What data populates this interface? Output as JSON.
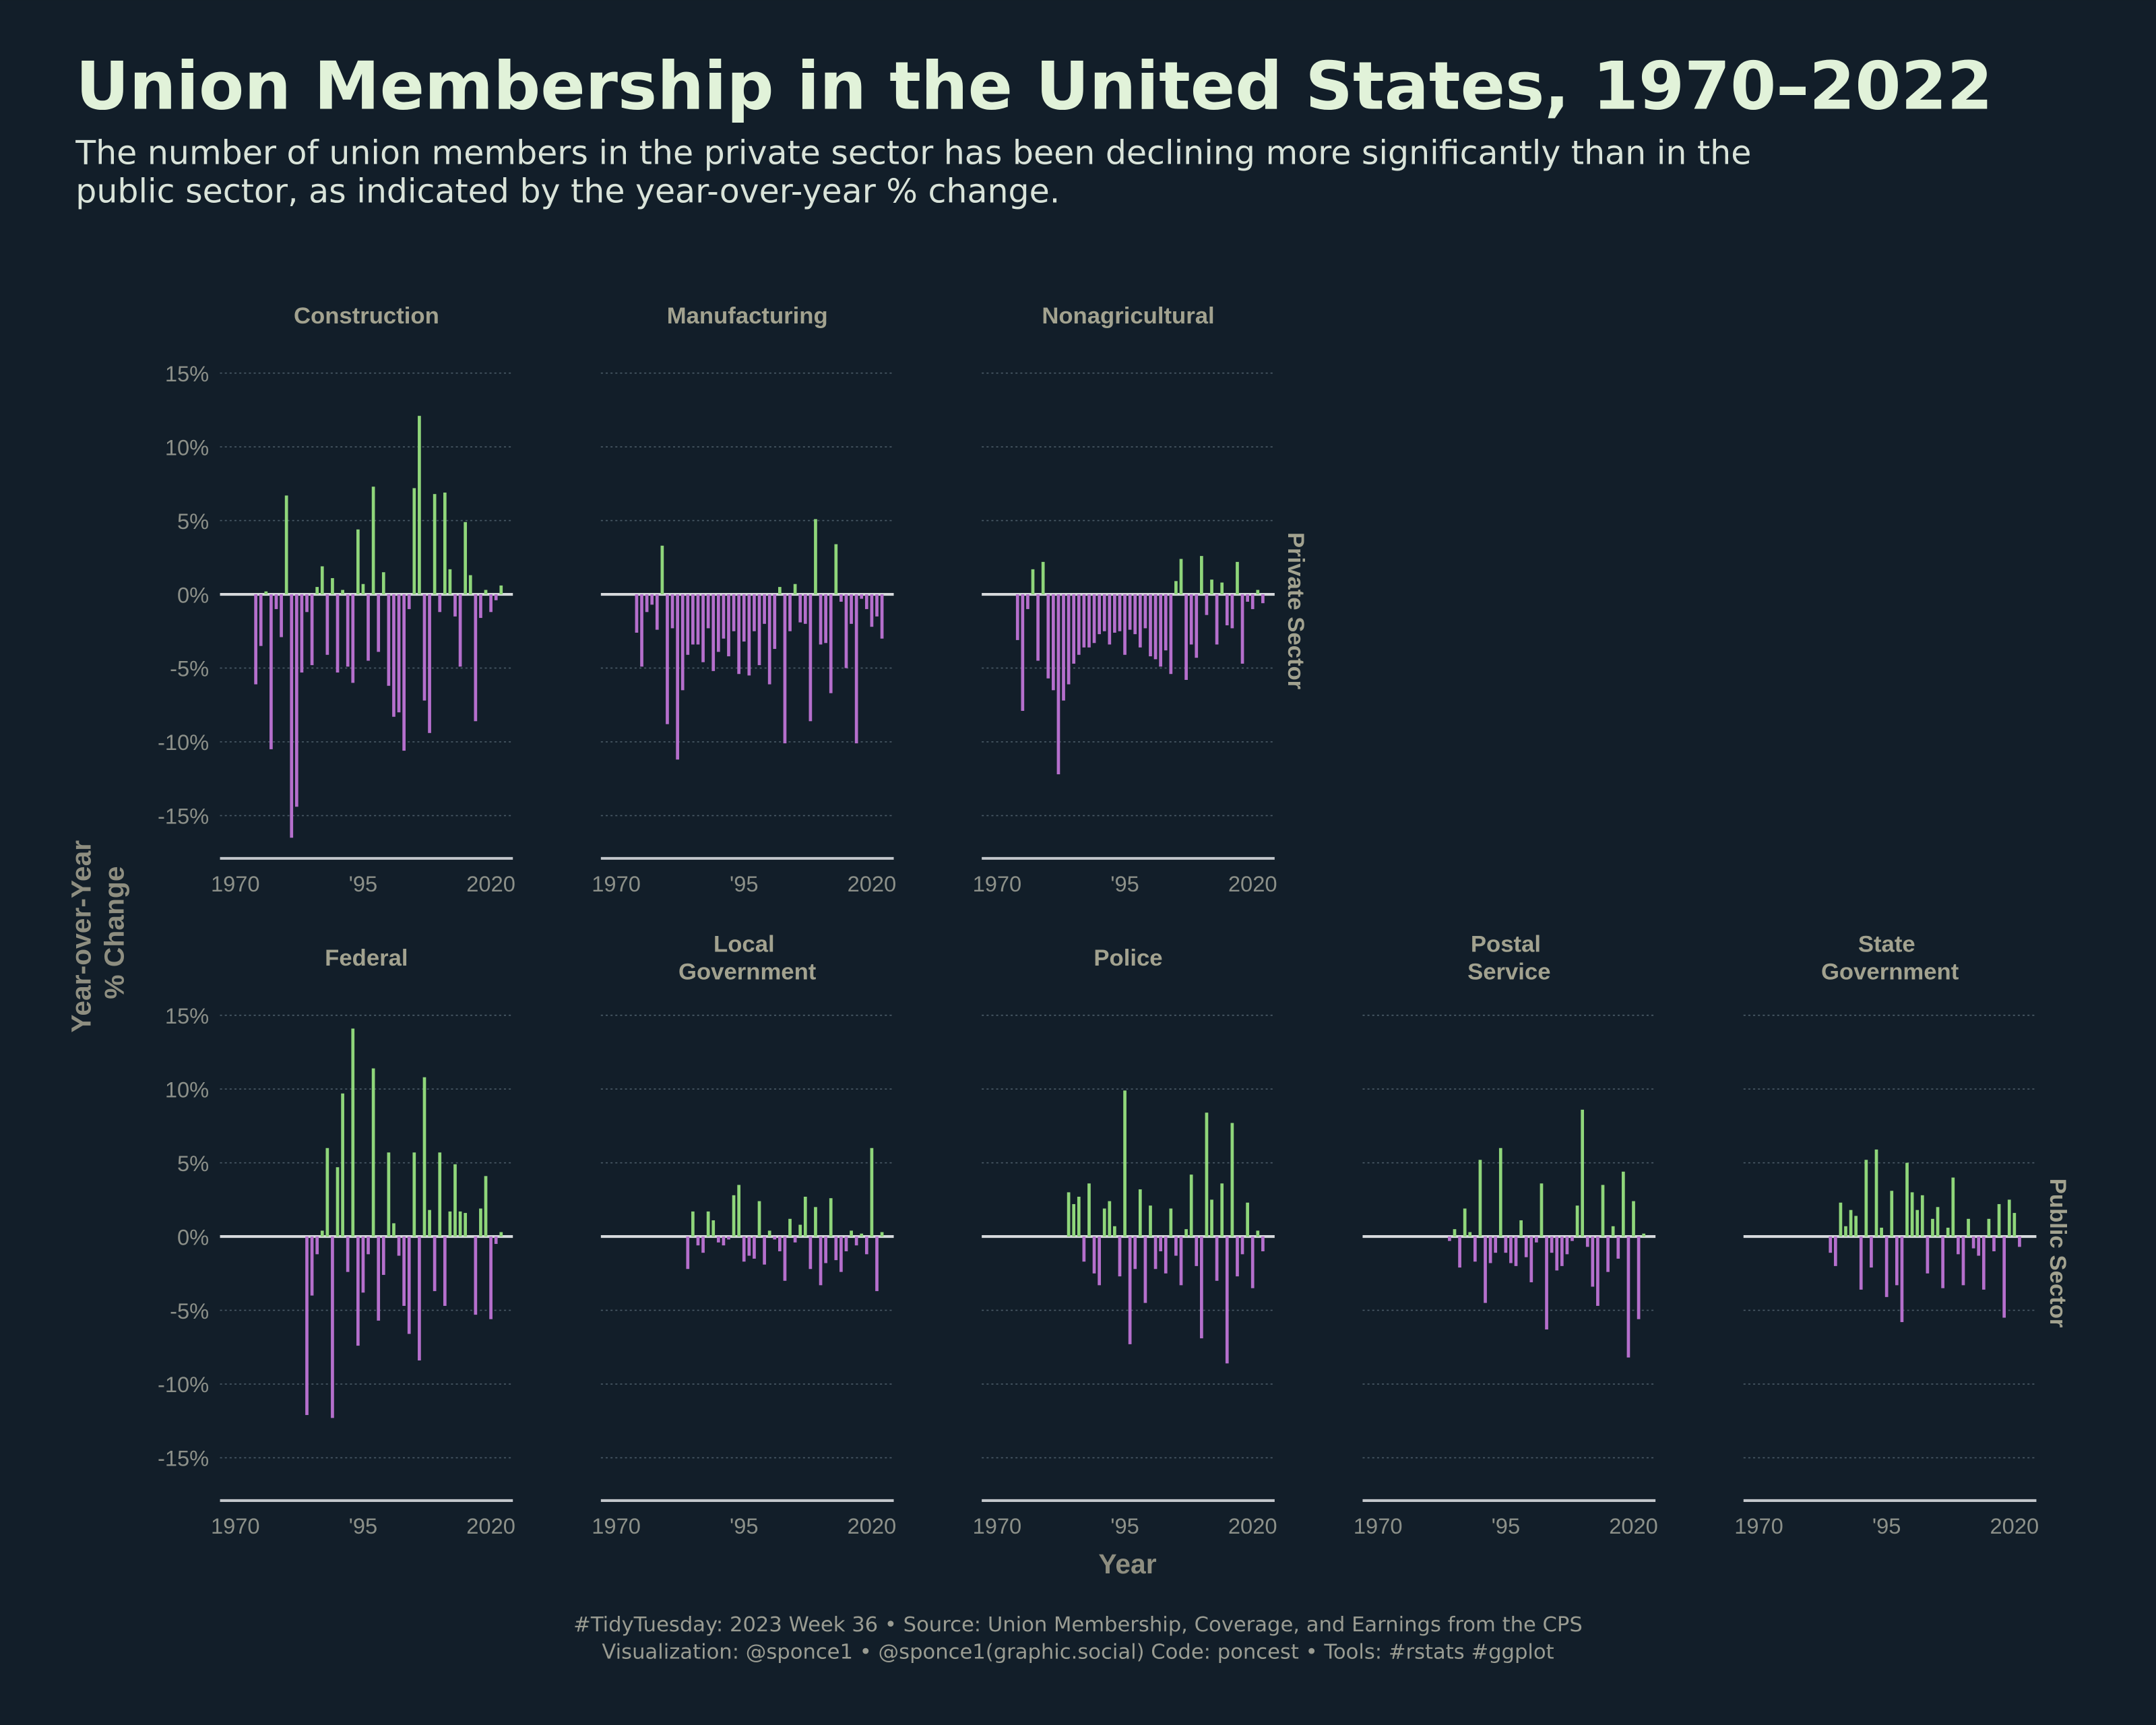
{
  "title": "Union Membership in the United States, 1970–2022",
  "subtitle": [
    "The number of union members in the private sector has been declining more significantly than in the",
    "public sector, as indicated by the year-over-year % change."
  ],
  "x_label": "Year",
  "y_label": "Year-over-Year % Change",
  "facet_rows": [
    "Private Sector",
    "Public Sector"
  ],
  "caption": [
    "#TidyTuesday: 2023 Week 36 • Source: Union Membership, Coverage, and Earnings from the CPS",
    "Visualization: @sponce1 • @sponce1(graphic.social) Code: poncest • Tools: #rstats #ggplot"
  ],
  "chart_data": [
    {
      "type": "bar",
      "title": "Construction",
      "x": [
        1974,
        1975,
        1976,
        1977,
        1978,
        1979,
        1980,
        1981,
        1982,
        1983,
        1984,
        1985,
        1986,
        1987,
        1988,
        1989,
        1990,
        1991,
        1992,
        1993,
        1994,
        1995,
        1996,
        1997,
        1998,
        1999,
        2000,
        2001,
        2002,
        2003,
        2004,
        2005,
        2006,
        2007,
        2008,
        2009,
        2010,
        2011,
        2012,
        2013,
        2014,
        2015,
        2016,
        2017,
        2018,
        2019,
        2020,
        2021,
        2022
      ],
      "values": [
        -6.1,
        -3.5,
        0.2,
        -10.5,
        -1.0,
        -2.9,
        6.7,
        -16.5,
        -14.4,
        -5.3,
        -1.2,
        -4.8,
        0.5,
        1.9,
        -4.1,
        1.1,
        -5.3,
        0.3,
        -4.9,
        -6.0,
        4.4,
        0.7,
        -4.5,
        7.3,
        -3.9,
        1.5,
        -6.2,
        -8.3,
        -8.0,
        -10.6,
        -1.0,
        7.2,
        12.1,
        -7.2,
        -9.4,
        6.8,
        -1.2,
        6.9,
        1.7,
        -1.5,
        -4.9,
        4.9,
        1.3,
        -8.6,
        -1.6,
        0.3,
        -1.2,
        -0.4,
        0.6
      ],
      "colors": {
        "positive": "#8fd67a",
        "negative": "#b56fcc"
      },
      "xlim": [
        1967,
        2024.3
      ],
      "xticks": [
        1970,
        {
          "value": 1995,
          "label": "'95"
        },
        2020
      ],
      "ylim": [
        -17.9,
        17.9
      ],
      "yticks": [
        {
          "value": -15,
          "label": "-15%"
        },
        {
          "value": -10,
          "label": "-10%"
        },
        {
          "value": -5,
          "label": "-5%"
        },
        {
          "value": 0,
          "label": "0%"
        },
        {
          "value": 5,
          "label": "5%"
        },
        {
          "value": 10,
          "label": "10%"
        },
        {
          "value": 15,
          "label": "15%"
        }
      ],
      "grid": true
    },
    {
      "type": "bar",
      "title": "Manufacturing",
      "x": [
        1974,
        1975,
        1976,
        1977,
        1978,
        1979,
        1980,
        1981,
        1982,
        1983,
        1984,
        1985,
        1986,
        1987,
        1988,
        1989,
        1990,
        1991,
        1992,
        1993,
        1994,
        1995,
        1996,
        1997,
        1998,
        1999,
        2000,
        2001,
        2002,
        2003,
        2004,
        2005,
        2006,
        2007,
        2008,
        2009,
        2010,
        2011,
        2012,
        2013,
        2014,
        2015,
        2016,
        2017,
        2018,
        2019,
        2020,
        2021,
        2022
      ],
      "values": [
        -2.6,
        -4.9,
        -1.2,
        -0.7,
        -2.4,
        3.3,
        -8.8,
        -2.3,
        -11.2,
        -6.5,
        -4.1,
        -3.4,
        -3.4,
        -4.6,
        -2.3,
        -5.2,
        -3.9,
        -3.0,
        -4.2,
        -2.5,
        -5.4,
        -3.2,
        -5.5,
        -2.5,
        -4.8,
        -2.0,
        -6.1,
        -3.7,
        0.5,
        -10.1,
        -2.5,
        0.7,
        -1.9,
        -2.0,
        -8.6,
        5.1,
        -3.4,
        -3.3,
        -6.7,
        3.4,
        -0.5,
        -5.0,
        -2.0,
        -10.1,
        -0.3,
        -1.0,
        -2.2,
        -1.5,
        -3.0
      ],
      "colors": {
        "positive": "#8fd67a",
        "negative": "#b56fcc"
      },
      "xlim": [
        1967,
        2024.3
      ],
      "xticks": [
        1970,
        {
          "value": 1995,
          "label": "'95"
        },
        2020
      ],
      "ylim": [
        -17.9,
        17.9
      ],
      "yticks": [
        {
          "value": -15,
          "label": "-15%"
        },
        {
          "value": -10,
          "label": "-10%"
        },
        {
          "value": -5,
          "label": "-5%"
        },
        {
          "value": 0,
          "label": "0%"
        },
        {
          "value": 5,
          "label": "5%"
        },
        {
          "value": 10,
          "label": "10%"
        },
        {
          "value": 15,
          "label": "15%"
        }
      ],
      "grid": true
    },
    {
      "type": "bar",
      "title": "Nonagricultural",
      "x": [
        1974,
        1975,
        1976,
        1977,
        1978,
        1979,
        1980,
        1981,
        1982,
        1983,
        1984,
        1985,
        1986,
        1987,
        1988,
        1989,
        1990,
        1991,
        1992,
        1993,
        1994,
        1995,
        1996,
        1997,
        1998,
        1999,
        2000,
        2001,
        2002,
        2003,
        2004,
        2005,
        2006,
        2007,
        2008,
        2009,
        2010,
        2011,
        2012,
        2013,
        2014,
        2015,
        2016,
        2017,
        2018,
        2019,
        2020,
        2021,
        2022
      ],
      "values": [
        -3.1,
        -7.9,
        -1.0,
        1.7,
        -4.5,
        2.2,
        -5.7,
        -6.5,
        -12.2,
        -7.2,
        -6.1,
        -4.7,
        -4.1,
        -3.6,
        -3.6,
        -3.3,
        -2.7,
        -2.5,
        -3.4,
        -2.6,
        -2.5,
        -4.1,
        -2.4,
        -2.7,
        -3.6,
        -2.3,
        -4.2,
        -4.4,
        -4.9,
        -3.8,
        -5.4,
        0.9,
        2.4,
        -5.8,
        -3.4,
        -4.3,
        2.6,
        -1.4,
        1.0,
        -3.4,
        0.8,
        -2.1,
        -2.3,
        2.2,
        -4.7,
        -0.5,
        -1.0,
        0.3,
        -0.6
      ],
      "colors": {
        "positive": "#8fd67a",
        "negative": "#b56fcc"
      },
      "xlim": [
        1967,
        2024.3
      ],
      "xticks": [
        1970,
        {
          "value": 1995,
          "label": "'95"
        },
        2020
      ],
      "ylim": [
        -17.9,
        17.9
      ],
      "yticks": [
        {
          "value": -15,
          "label": "-15%"
        },
        {
          "value": -10,
          "label": "-10%"
        },
        {
          "value": -5,
          "label": "-5%"
        },
        {
          "value": 0,
          "label": "0%"
        },
        {
          "value": 5,
          "label": "5%"
        },
        {
          "value": 10,
          "label": "10%"
        },
        {
          "value": 15,
          "label": "15%"
        }
      ],
      "grid": true
    },
    {
      "type": "bar",
      "title": "Federal",
      "x": [
        1984,
        1985,
        1986,
        1987,
        1988,
        1989,
        1990,
        1991,
        1992,
        1993,
        1994,
        1995,
        1996,
        1997,
        1998,
        1999,
        2000,
        2001,
        2002,
        2003,
        2004,
        2005,
        2006,
        2007,
        2008,
        2009,
        2010,
        2011,
        2012,
        2013,
        2014,
        2015,
        2016,
        2017,
        2018,
        2019,
        2020,
        2021,
        2022
      ],
      "values": [
        -12.1,
        -4.0,
        -1.2,
        0.4,
        6.0,
        -12.3,
        4.7,
        9.7,
        -2.4,
        14.1,
        -7.4,
        -3.8,
        -1.2,
        11.4,
        -5.7,
        -2.6,
        5.7,
        0.9,
        -1.3,
        -4.7,
        -6.6,
        5.7,
        -8.4,
        10.8,
        1.8,
        -3.7,
        5.7,
        -4.7,
        1.7,
        4.9,
        1.7,
        1.6,
        0.0,
        -5.3,
        1.9,
        4.1,
        -5.6,
        -0.5,
        0.3
      ],
      "colors": {
        "positive": "#8fd67a",
        "negative": "#b56fcc"
      },
      "xlim": [
        1967,
        2024.3
      ],
      "xticks": [
        1970,
        {
          "value": 1995,
          "label": "'95"
        },
        2020
      ],
      "ylim": [
        -17.9,
        17.9
      ],
      "yticks": [
        {
          "value": -15,
          "label": "-15%"
        },
        {
          "value": -10,
          "label": "-10%"
        },
        {
          "value": -5,
          "label": "-5%"
        },
        {
          "value": 0,
          "label": "0%"
        },
        {
          "value": 5,
          "label": "5%"
        },
        {
          "value": 10,
          "label": "10%"
        },
        {
          "value": 15,
          "label": "15%"
        }
      ],
      "grid": true
    },
    {
      "type": "bar",
      "title": "Local Government",
      "x": [
        1984,
        1985,
        1986,
        1987,
        1988,
        1989,
        1990,
        1991,
        1992,
        1993,
        1994,
        1995,
        1996,
        1997,
        1998,
        1999,
        2000,
        2001,
        2002,
        2003,
        2004,
        2005,
        2006,
        2007,
        2008,
        2009,
        2010,
        2011,
        2012,
        2013,
        2014,
        2015,
        2016,
        2017,
        2018,
        2019,
        2020,
        2021,
        2022
      ],
      "values": [
        -2.2,
        1.7,
        -0.6,
        -1.1,
        1.7,
        1.1,
        -0.4,
        -0.6,
        -0.2,
        2.8,
        3.5,
        -1.7,
        -1.3,
        -1.5,
        2.4,
        -1.9,
        0.4,
        -0.2,
        -1.0,
        -3.0,
        1.2,
        -0.4,
        0.8,
        2.7,
        -2.2,
        2.0,
        -3.3,
        -1.8,
        2.6,
        -1.6,
        -2.4,
        -1.0,
        0.4,
        -0.6,
        0.2,
        -1.2,
        6.0,
        -3.7,
        0.3
      ],
      "colors": {
        "positive": "#8fd67a",
        "negative": "#b56fcc"
      },
      "xlim": [
        1967,
        2024.3
      ],
      "xticks": [
        1970,
        {
          "value": 1995,
          "label": "'95"
        },
        2020
      ],
      "ylim": [
        -17.9,
        17.9
      ],
      "yticks": [
        {
          "value": -15,
          "label": "-15%"
        },
        {
          "value": -10,
          "label": "-10%"
        },
        {
          "value": -5,
          "label": "-5%"
        },
        {
          "value": 0,
          "label": "0%"
        },
        {
          "value": 5,
          "label": "5%"
        },
        {
          "value": 10,
          "label": "10%"
        },
        {
          "value": 15,
          "label": "15%"
        }
      ],
      "grid": true
    },
    {
      "type": "bar",
      "title": "Police",
      "x": [
        1984,
        1985,
        1986,
        1987,
        1988,
        1989,
        1990,
        1991,
        1992,
        1993,
        1994,
        1995,
        1996,
        1997,
        1998,
        1999,
        2000,
        2001,
        2002,
        2003,
        2004,
        2005,
        2006,
        2007,
        2008,
        2009,
        2010,
        2011,
        2012,
        2013,
        2014,
        2015,
        2016,
        2017,
        2018,
        2019,
        2020,
        2021,
        2022
      ],
      "values": [
        3.0,
        2.2,
        2.7,
        -1.7,
        3.6,
        -2.5,
        -3.3,
        1.9,
        2.4,
        0.7,
        -2.7,
        9.9,
        -7.3,
        -2.2,
        3.2,
        -4.5,
        2.1,
        -2.2,
        -1.0,
        -2.5,
        1.9,
        -1.3,
        -3.3,
        0.5,
        4.2,
        -2.0,
        -6.9,
        8.4,
        2.5,
        -3.0,
        3.6,
        -8.6,
        7.7,
        -2.7,
        -1.2,
        2.3,
        -3.5,
        0.4,
        -1.0
      ],
      "colors": {
        "positive": "#8fd67a",
        "negative": "#b56fcc"
      },
      "xlim": [
        1967,
        2024.3
      ],
      "xticks": [
        1970,
        {
          "value": 1995,
          "label": "'95"
        },
        2020
      ],
      "ylim": [
        -17.9,
        17.9
      ],
      "yticks": [
        {
          "value": -15,
          "label": "-15%"
        },
        {
          "value": -10,
          "label": "-10%"
        },
        {
          "value": -5,
          "label": "-5%"
        },
        {
          "value": 0,
          "label": "0%"
        },
        {
          "value": 5,
          "label": "5%"
        },
        {
          "value": 10,
          "label": "10%"
        },
        {
          "value": 15,
          "label": "15%"
        }
      ],
      "grid": true
    },
    {
      "type": "bar",
      "title": "Postal Service",
      "x": [
        1984,
        1985,
        1986,
        1987,
        1988,
        1989,
        1990,
        1991,
        1992,
        1993,
        1994,
        1995,
        1996,
        1997,
        1998,
        1999,
        2000,
        2001,
        2002,
        2003,
        2004,
        2005,
        2006,
        2007,
        2008,
        2009,
        2010,
        2011,
        2012,
        2013,
        2014,
        2015,
        2016,
        2017,
        2018,
        2019,
        2020,
        2021,
        2022
      ],
      "values": [
        -0.3,
        0.5,
        -2.1,
        1.9,
        0.3,
        -1.7,
        5.2,
        -4.5,
        -1.8,
        -1.1,
        6.0,
        -1.1,
        -1.8,
        -2.0,
        1.1,
        -1.4,
        -3.1,
        -0.4,
        3.6,
        -6.3,
        -1.1,
        -2.3,
        -2.0,
        -1.2,
        -0.3,
        2.1,
        8.6,
        -0.7,
        -3.4,
        -4.7,
        3.5,
        -2.4,
        0.7,
        -1.5,
        4.4,
        -8.2,
        2.4,
        -5.6,
        0.2
      ],
      "colors": {
        "positive": "#8fd67a",
        "negative": "#b56fcc"
      },
      "xlim": [
        1967,
        2024.3
      ],
      "xticks": [
        1970,
        {
          "value": 1995,
          "label": "'95"
        },
        2020
      ],
      "ylim": [
        -17.9,
        17.9
      ],
      "yticks": [
        {
          "value": -15,
          "label": "-15%"
        },
        {
          "value": -10,
          "label": "-10%"
        },
        {
          "value": -5,
          "label": "-5%"
        },
        {
          "value": 0,
          "label": "0%"
        },
        {
          "value": 5,
          "label": "5%"
        },
        {
          "value": 10,
          "label": "10%"
        },
        {
          "value": 15,
          "label": "15%"
        }
      ],
      "grid": true
    },
    {
      "type": "bar",
      "title": "State Government",
      "x": [
        1984,
        1985,
        1986,
        1987,
        1988,
        1989,
        1990,
        1991,
        1992,
        1993,
        1994,
        1995,
        1996,
        1997,
        1998,
        1999,
        2000,
        2001,
        2002,
        2003,
        2004,
        2005,
        2006,
        2007,
        2008,
        2009,
        2010,
        2011,
        2012,
        2013,
        2014,
        2015,
        2016,
        2017,
        2018,
        2019,
        2020,
        2021,
        2022
      ],
      "values": [
        -1.1,
        -2.0,
        2.3,
        0.7,
        1.8,
        1.4,
        -3.6,
        5.2,
        -2.1,
        5.9,
        0.6,
        -4.1,
        3.1,
        -3.3,
        -5.8,
        5.0,
        3.0,
        1.8,
        2.8,
        -2.5,
        1.2,
        2.0,
        -3.5,
        0.6,
        4.0,
        -1.2,
        -3.3,
        1.2,
        -0.8,
        -1.3,
        -3.6,
        1.2,
        -1.0,
        2.2,
        -5.5,
        2.5,
        1.6,
        -0.7,
        0.0
      ],
      "colors": {
        "positive": "#8fd67a",
        "negative": "#b56fcc"
      },
      "xlim": [
        1967,
        2024.3
      ],
      "xticks": [
        1970,
        {
          "value": 1995,
          "label": "'95"
        },
        2020
      ],
      "ylim": [
        -17.9,
        17.9
      ],
      "yticks": [
        {
          "value": -15,
          "label": "-15%"
        },
        {
          "value": -10,
          "label": "-10%"
        },
        {
          "value": -5,
          "label": "-5%"
        },
        {
          "value": 0,
          "label": "0%"
        },
        {
          "value": 5,
          "label": "5%"
        },
        {
          "value": 10,
          "label": "10%"
        },
        {
          "value": 15,
          "label": "15%"
        }
      ],
      "grid": true
    }
  ]
}
